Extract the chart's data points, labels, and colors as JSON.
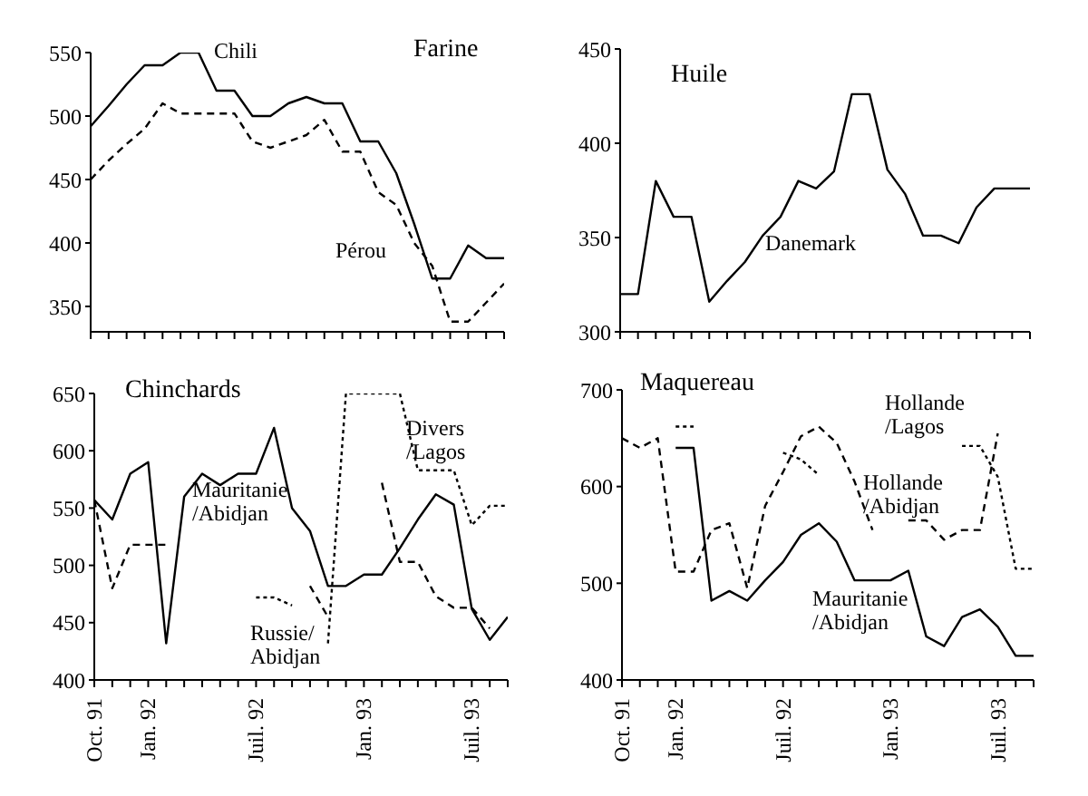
{
  "chart_data": [
    {
      "type": "line",
      "title": "Farine",
      "categories": [
        null,
        null,
        null,
        null,
        null,
        null,
        null,
        null,
        null,
        null,
        null,
        null,
        null,
        null,
        null,
        null,
        null,
        null,
        null,
        null,
        null,
        null,
        null,
        null
      ],
      "ylim": [
        330,
        550
      ],
      "yticks": [
        350,
        400,
        450,
        500,
        550
      ],
      "series": [
        {
          "name": "Chili",
          "color": "#000000",
          "line_style": "solid",
          "values": [
            492,
            508,
            525,
            540,
            540,
            550,
            550,
            520,
            520,
            500,
            500,
            510,
            515,
            510,
            510,
            480,
            480,
            455,
            415,
            372,
            372,
            398,
            388,
            388
          ]
        },
        {
          "name": "Pérou",
          "color": "#000000",
          "line_style": "dashed",
          "values": [
            450,
            465,
            478,
            490,
            510,
            502,
            502,
            502,
            502,
            480,
            475,
            480,
            485,
            497,
            472,
            472,
            440,
            430,
            400,
            382,
            338,
            338,
            353,
            368
          ]
        }
      ]
    },
    {
      "type": "line",
      "title": "Huile",
      "categories": [
        null,
        null,
        null,
        null,
        null,
        null,
        null,
        null,
        null,
        null,
        null,
        null,
        null,
        null,
        null,
        null,
        null,
        null,
        null,
        null,
        null,
        null,
        null,
        null
      ],
      "ylim": [
        300,
        450
      ],
      "yticks": [
        300,
        350,
        400,
        450
      ],
      "series": [
        {
          "name": "Danemark",
          "color": "#000000",
          "line_style": "solid",
          "values": [
            320,
            320,
            380,
            361,
            361,
            316,
            327,
            337,
            351,
            361,
            380,
            376,
            385,
            426,
            426,
            386,
            373,
            351,
            351,
            347,
            366,
            376,
            376,
            376
          ]
        }
      ]
    },
    {
      "type": "line",
      "title": "Chinchards",
      "categories": [
        "Oct. 91",
        null,
        null,
        "Jan. 92",
        null,
        null,
        null,
        null,
        null,
        "Juil. 92",
        null,
        null,
        null,
        null,
        null,
        "Jan. 93",
        null,
        null,
        null,
        null,
        null,
        "Juil. 93",
        null,
        null
      ],
      "ylim": [
        400,
        650
      ],
      "yticks": [
        400,
        450,
        500,
        550,
        600,
        650
      ],
      "series": [
        {
          "name": "Mauritanie /Abidjan",
          "color": "#000000",
          "line_style": "solid",
          "values": [
            557,
            540,
            580,
            590,
            432,
            560,
            580,
            570,
            580,
            580,
            620,
            550,
            530,
            482,
            482,
            492,
            492,
            515,
            540,
            562,
            553,
            462,
            435,
            455
          ]
        },
        {
          "name": "Russie/ Abidjan",
          "color": "#000000",
          "line_style": "dashed",
          "values": [
            557,
            480,
            518,
            518,
            518,
            null,
            null,
            null,
            null,
            null,
            null,
            null,
            482,
            455,
            null,
            null,
            572,
            503,
            503,
            473,
            463,
            463,
            445,
            null
          ]
        },
        {
          "name": "Divers /Lagos",
          "color": "#000000",
          "line_style": "dotted",
          "values": [
            null,
            null,
            null,
            null,
            null,
            null,
            null,
            null,
            null,
            472,
            472,
            465,
            null,
            432,
            650,
            650,
            650,
            650,
            583,
            583,
            583,
            535,
            552,
            552
          ]
        }
      ]
    },
    {
      "type": "line",
      "title": "Maquereau",
      "categories": [
        "Oct. 91",
        null,
        null,
        "Jan. 92",
        null,
        null,
        null,
        null,
        null,
        "Juil. 92",
        null,
        null,
        null,
        null,
        null,
        "Jan. 93",
        null,
        null,
        null,
        null,
        null,
        "Juil. 93",
        null,
        null
      ],
      "ylim": [
        400,
        700
      ],
      "yticks": [
        400,
        500,
        600,
        700
      ],
      "series": [
        {
          "name": "Mauritanie /Abidjan",
          "color": "#000000",
          "line_style": "solid",
          "values": [
            null,
            null,
            null,
            640,
            640,
            482,
            492,
            482,
            503,
            522,
            550,
            562,
            543,
            503,
            503,
            503,
            513,
            445,
            435,
            465,
            473,
            455,
            425,
            425
          ]
        },
        {
          "name": "Hollande /Abidjan",
          "color": "#000000",
          "line_style": "dashed",
          "values": [
            650,
            640,
            650,
            512,
            512,
            555,
            562,
            495,
            580,
            615,
            652,
            662,
            645,
            605,
            555,
            null,
            565,
            565,
            545,
            555,
            555,
            655,
            null,
            null
          ]
        },
        {
          "name": "Hollande /Lagos",
          "color": "#000000",
          "line_style": "dotted",
          "values": [
            null,
            null,
            null,
            662,
            662,
            null,
            null,
            null,
            null,
            635,
            628,
            612,
            null,
            null,
            null,
            null,
            null,
            null,
            null,
            642,
            642,
            610,
            515,
            515
          ]
        }
      ]
    }
  ]
}
